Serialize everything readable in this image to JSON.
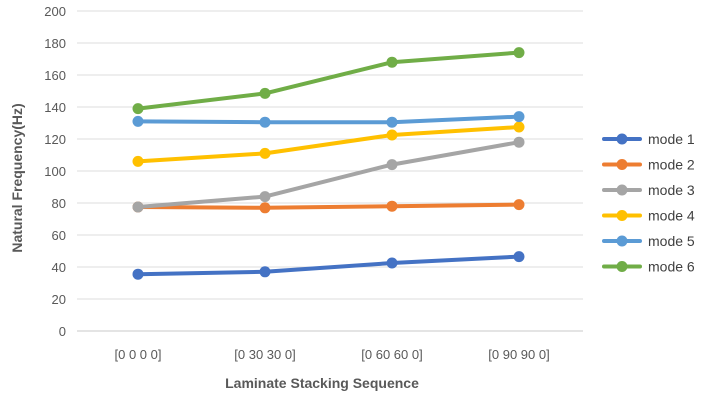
{
  "chart_data": {
    "type": "line",
    "title": "",
    "xlabel": "Laminate Stacking Sequence",
    "ylabel": "Natural Frequency(Hz)",
    "categories": [
      "[0 0 0 0]",
      "[0 30 30 0]",
      "[0 60 60 0]",
      "[0 90 90 0]"
    ],
    "ylim": [
      0,
      200
    ],
    "yticks": [
      0,
      20,
      40,
      60,
      80,
      100,
      120,
      140,
      160,
      180,
      200
    ],
    "grid": true,
    "legend": "right",
    "series": [
      {
        "name": "mode 1",
        "color": "#4472C4",
        "values": [
          35.5,
          37,
          42.5,
          46.5
        ]
      },
      {
        "name": "mode 2",
        "color": "#ED7D31",
        "values": [
          77.5,
          77,
          78,
          79
        ]
      },
      {
        "name": "mode 3",
        "color": "#A5A5A5",
        "values": [
          77.5,
          84,
          104,
          118
        ]
      },
      {
        "name": "mode 4",
        "color": "#FFC000",
        "values": [
          106,
          111,
          122.5,
          127.5
        ]
      },
      {
        "name": "mode 5",
        "color": "#5B9BD5",
        "values": [
          131,
          130.5,
          130.5,
          134
        ]
      },
      {
        "name": "mode 6",
        "color": "#70AD47",
        "values": [
          139,
          148.5,
          168,
          174
        ]
      }
    ]
  }
}
